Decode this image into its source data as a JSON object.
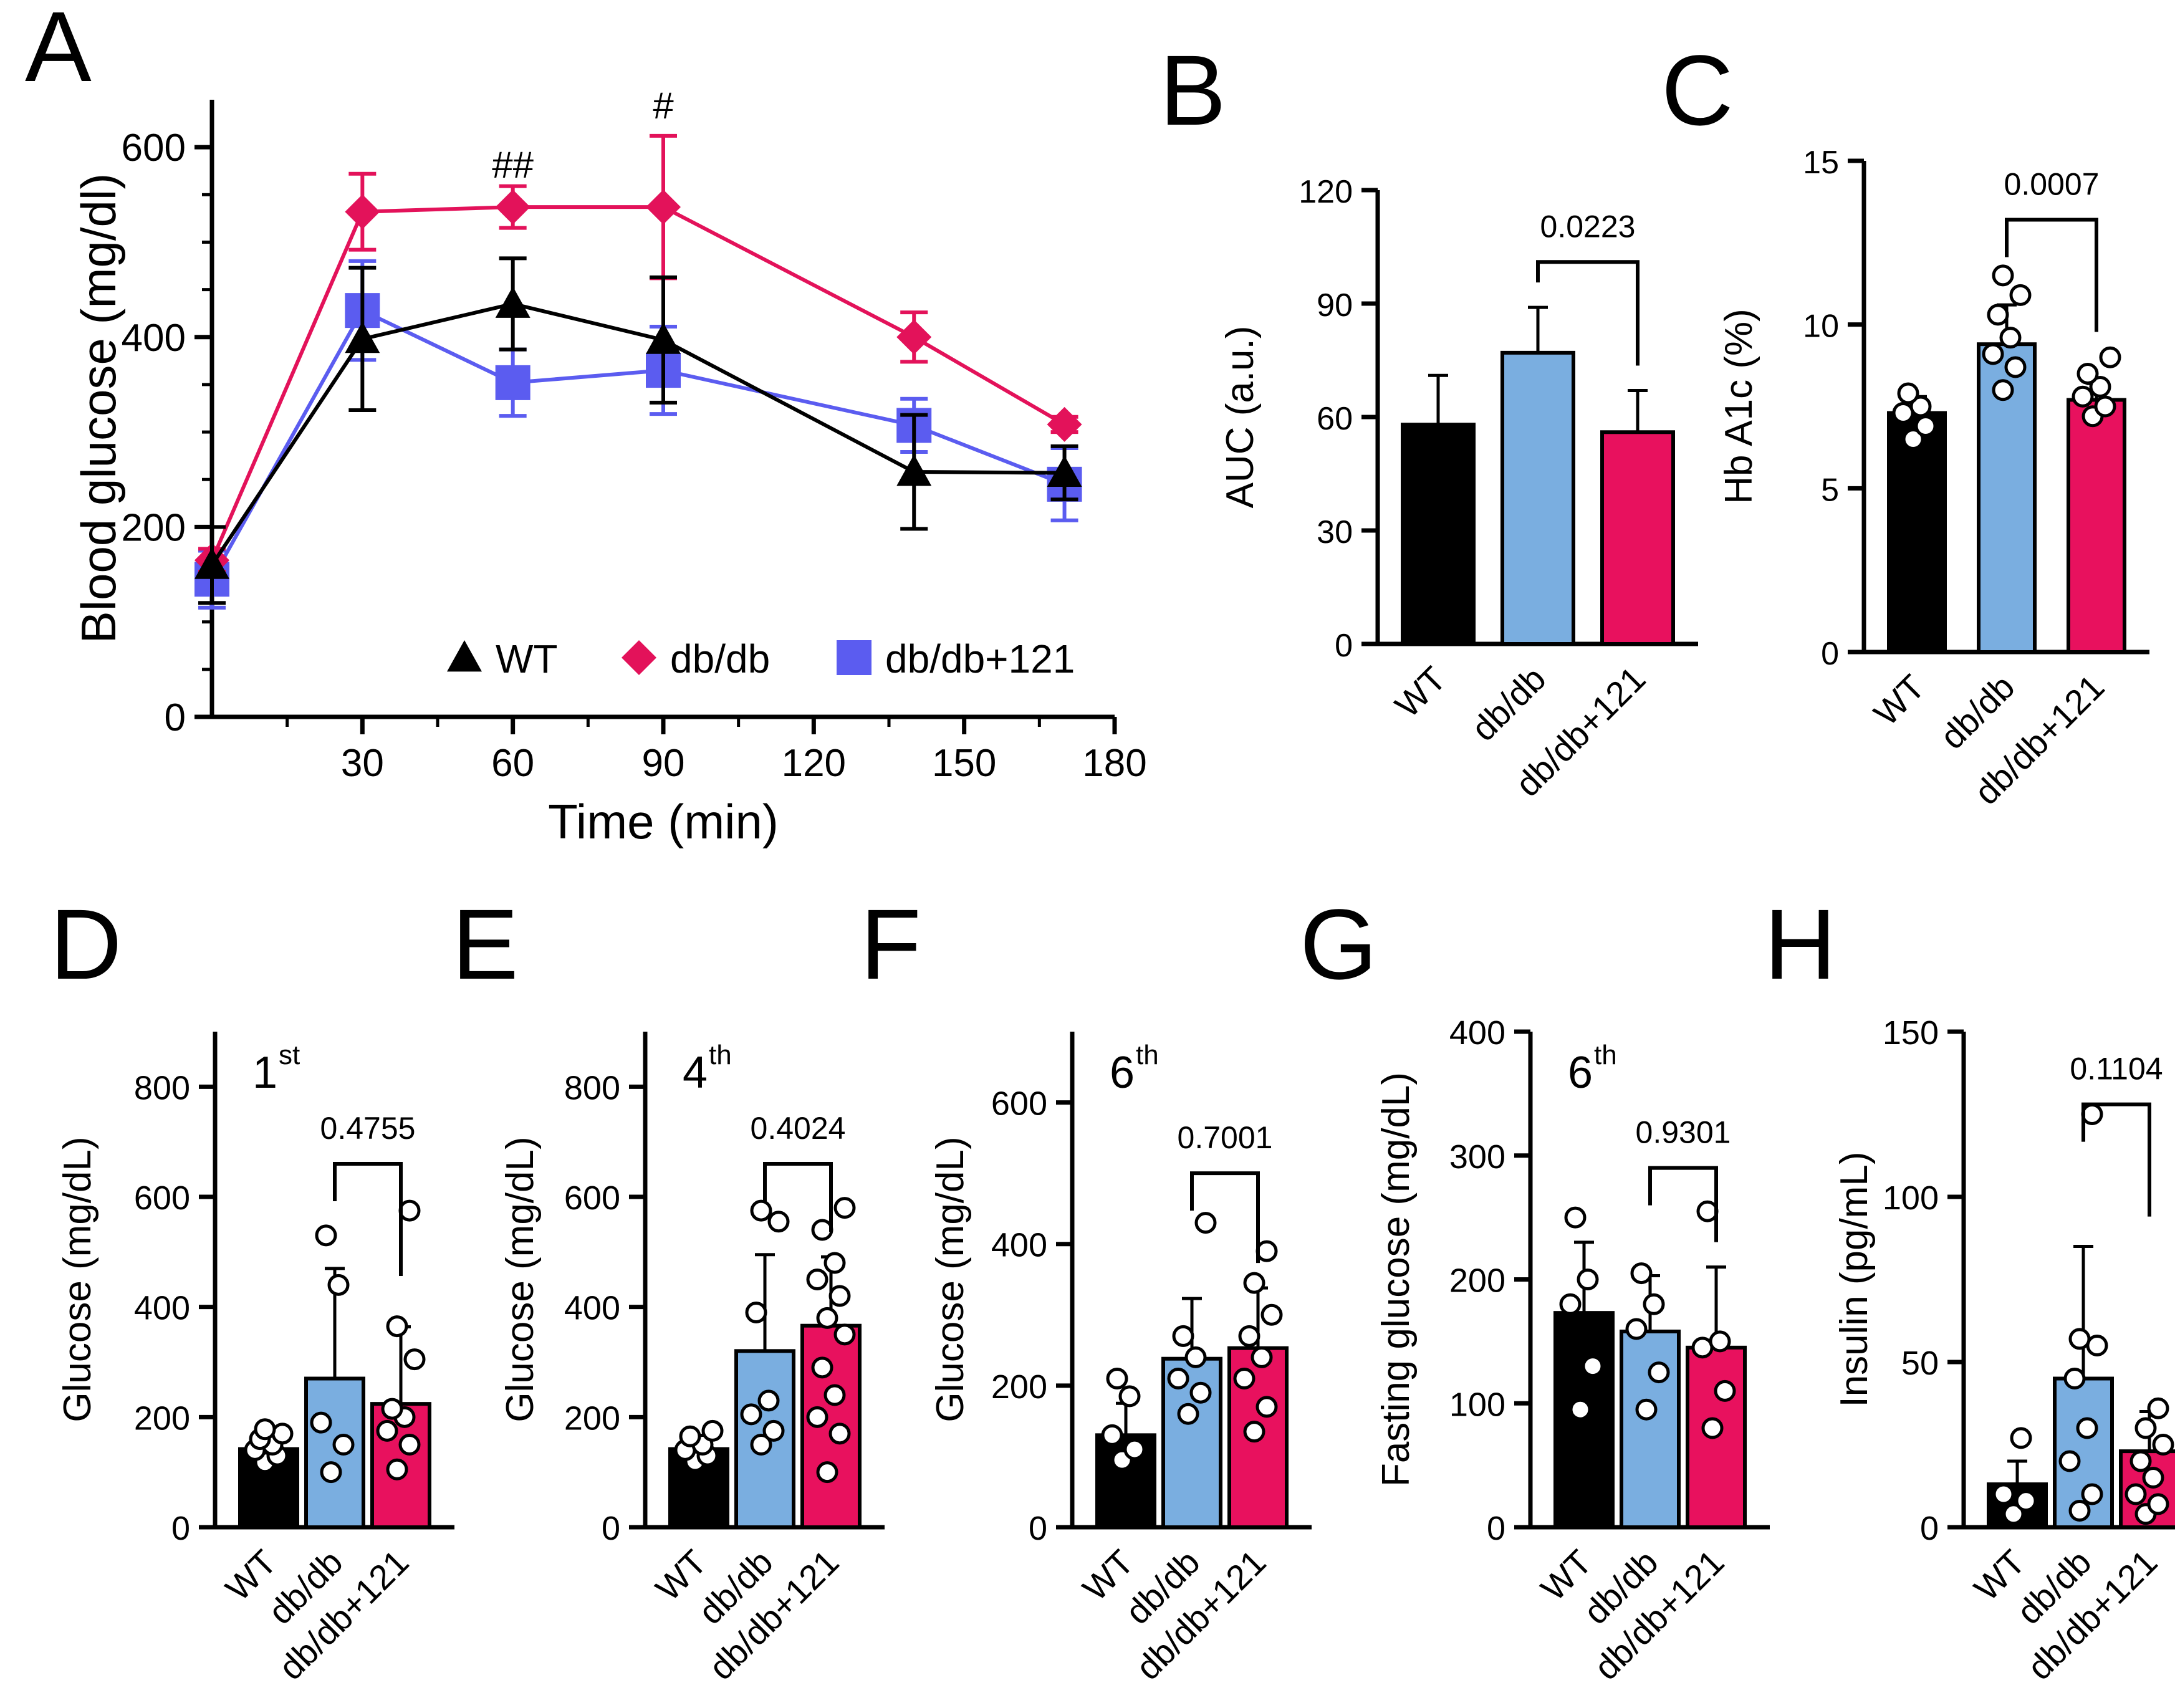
{
  "colors": {
    "wt": "#000000",
    "dbdb": "#e3125a",
    "dbdb121": "#5b5cf0",
    "bar_dbdb": "#7aaee0",
    "bar_dbdb121": "#e8115e"
  },
  "chart_data": [
    {
      "panel": "A",
      "type": "line",
      "xlabel": "Time (min)",
      "ylabel": "Blood glucose  (mg/dl)",
      "xlim": [
        0,
        180
      ],
      "ylim": [
        0,
        650
      ],
      "xticks": [
        30,
        60,
        90,
        120,
        150,
        180
      ],
      "yticks": [
        0,
        200,
        400,
        600
      ],
      "significance": [
        {
          "x": 60,
          "label": "##"
        },
        {
          "x": 90,
          "label": "#"
        }
      ],
      "series": [
        {
          "name": "WT",
          "marker": "triangle",
          "color": "#000000",
          "x": [
            0,
            30,
            60,
            90,
            140,
            170
          ],
          "y": [
            160,
            398,
            435,
            397,
            258,
            257
          ],
          "err": [
            40,
            75,
            48,
            66,
            60,
            28
          ]
        },
        {
          "name": "db/db",
          "marker": "diamond",
          "color": "#e3125a",
          "x": [
            0,
            30,
            60,
            90,
            140,
            170
          ],
          "y": [
            165,
            532,
            537,
            537,
            400,
            308
          ],
          "err": [
            12,
            40,
            22,
            75,
            26,
            8
          ]
        },
        {
          "name": "db/db+121",
          "marker": "square",
          "color": "#5b5cf0",
          "x": [
            0,
            30,
            60,
            90,
            140,
            170
          ],
          "y": [
            145,
            428,
            352,
            365,
            307,
            245
          ],
          "err": [
            30,
            52,
            35,
            46,
            28,
            38
          ]
        }
      ]
    },
    {
      "panel": "B",
      "type": "bar",
      "ylabel": "AUC (a.u.)",
      "ylim": [
        0,
        120
      ],
      "yticks": [
        0,
        30,
        60,
        90,
        120
      ],
      "categories": [
        "WT",
        "db/db",
        "db/db+121"
      ],
      "values": [
        58,
        77,
        56
      ],
      "err": [
        13,
        12,
        11
      ],
      "points": [
        [],
        [],
        []
      ],
      "pvalue": {
        "between": [
          1,
          2
        ],
        "label": "0.0223",
        "y": 101
      }
    },
    {
      "panel": "C",
      "type": "bar",
      "ylabel": "Hb A1c (%)",
      "ylim": [
        0,
        15
      ],
      "yticks": [
        0,
        5,
        10,
        15
      ],
      "categories": [
        "WT",
        "db/db",
        "db/db+121"
      ],
      "values": [
        7.3,
        9.4,
        7.7
      ],
      "err": [
        0.5,
        1.2,
        0.5
      ],
      "points": [
        [
          6.5,
          6.9,
          7.3,
          7.5,
          7.9
        ],
        [
          8.0,
          8.7,
          9.1,
          9.6,
          10.3,
          10.9,
          11.5
        ],
        [
          7.2,
          7.5,
          7.8,
          8.1,
          8.5,
          9.0
        ]
      ],
      "pvalue": {
        "between": [
          1,
          2
        ],
        "label": "0.0007",
        "y": 13.2
      }
    },
    {
      "panel": "D",
      "type": "bar",
      "annotation": "1",
      "annotation_sup": "st",
      "ylabel": "Glucose (mg/dL)",
      "ylim": [
        0,
        900
      ],
      "yticks": [
        0,
        200,
        400,
        600,
        800
      ],
      "categories": [
        "WT",
        "db/db",
        "db/db+121"
      ],
      "values": [
        142,
        270,
        224
      ],
      "err": [
        25,
        200,
        140
      ],
      "points": [
        [
          118,
          130,
          140,
          150,
          160,
          170,
          178
        ],
        [
          100,
          150,
          190,
          440,
          530
        ],
        [
          105,
          150,
          175,
          200,
          215,
          305,
          365,
          575
        ]
      ],
      "pvalue": {
        "between": [
          1,
          2
        ],
        "label": "0.4755",
        "y": 660
      }
    },
    {
      "panel": "E",
      "type": "bar",
      "annotation": "4",
      "annotation_sup": "th",
      "ylabel": "Glucose (mg/dL)",
      "ylim": [
        0,
        900
      ],
      "yticks": [
        0,
        200,
        400,
        600,
        800
      ],
      "categories": [
        "WT",
        "db/db",
        "db/db+121"
      ],
      "values": [
        142,
        320,
        366
      ],
      "err": [
        25,
        175,
        125
      ],
      "points": [
        [
          120,
          130,
          140,
          150,
          165,
          175
        ],
        [
          150,
          175,
          205,
          230,
          390,
          555,
          575
        ],
        [
          100,
          170,
          200,
          240,
          290,
          350,
          380,
          420,
          450,
          480,
          540,
          580
        ]
      ],
      "pvalue": {
        "between": [
          1,
          2
        ],
        "label": "0.4024",
        "y": 660
      }
    },
    {
      "panel": "F",
      "type": "bar",
      "annotation": "6",
      "annotation_sup": "th",
      "ylabel": "Glucose (mg/dL)",
      "ylim": [
        0,
        700
      ],
      "yticks": [
        0,
        200,
        400,
        600
      ],
      "categories": [
        "WT",
        "db/db",
        "db/db+121"
      ],
      "values": [
        130,
        238,
        253
      ],
      "err": [
        45,
        85,
        85
      ],
      "points": [
        [
          95,
          110,
          130,
          185,
          210
        ],
        [
          160,
          190,
          210,
          240,
          270,
          430
        ],
        [
          135,
          170,
          210,
          240,
          270,
          300,
          345,
          390
        ]
      ],
      "pvalue": {
        "between": [
          1,
          2
        ],
        "label": "0.7001",
        "y": 500
      }
    },
    {
      "panel": "G",
      "type": "bar",
      "annotation": "6",
      "annotation_sup": "th",
      "ylabel": "Fasting glucose (mg/dL)",
      "ylim": [
        0,
        400
      ],
      "yticks": [
        0,
        100,
        200,
        300,
        400
      ],
      "categories": [
        "WT",
        "db/db",
        "db/db+121"
      ],
      "values": [
        173,
        158,
        145
      ],
      "err": [
        57,
        45,
        65
      ],
      "points": [
        [
          95,
          130,
          180,
          200,
          250
        ],
        [
          95,
          125,
          160,
          180,
          205
        ],
        [
          80,
          110,
          145,
          150,
          255
        ]
      ],
      "pvalue": {
        "between": [
          1,
          2
        ],
        "label": "0.9301",
        "y": 290
      }
    },
    {
      "panel": "H",
      "type": "bar",
      "ylabel": "Insulin (pg/mL)",
      "ylim": [
        0,
        150
      ],
      "yticks": [
        0,
        50,
        100,
        150
      ],
      "categories": [
        "WT",
        "db/db",
        "db/db+121"
      ],
      "values": [
        13,
        45,
        23
      ],
      "err": [
        7,
        40,
        12
      ],
      "points": [
        [
          4,
          8,
          10,
          27
        ],
        [
          5,
          10,
          20,
          30,
          45,
          55,
          57,
          125
        ],
        [
          4,
          7,
          10,
          15,
          20,
          25,
          30,
          36
        ]
      ],
      "pvalue": {
        "between": [
          1,
          2
        ],
        "label": "0.1104",
        "y": 128
      }
    }
  ],
  "panel_letters": [
    "A",
    "B",
    "C",
    "D",
    "E",
    "F",
    "G",
    "H"
  ]
}
